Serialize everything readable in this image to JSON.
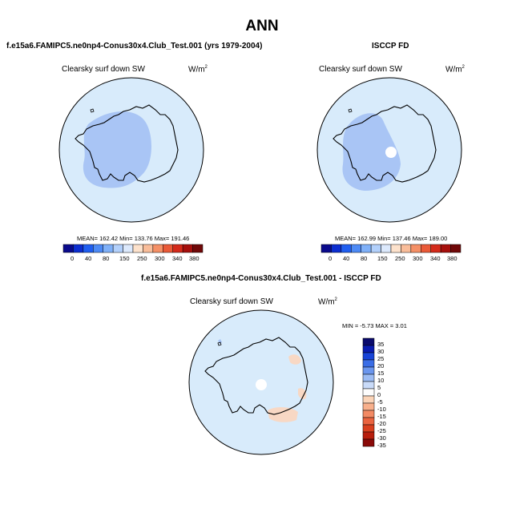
{
  "title": "ANN",
  "colors": {
    "base_field": "#d8ebfb",
    "low_band": "#a9c5f5",
    "land_outline": "#000000",
    "frame": "#000000",
    "diff_base": "#d8ebfb",
    "diff_positive": "#f8d8c4"
  },
  "panels": [
    {
      "case_title": "f.e15a6.FAMIPC5.ne0np4-Conus30x4.Club_Test.001 (yrs 1979-2004)",
      "variable": "Clearsky surf down SW",
      "units_base": "W/m",
      "units_exp": "2",
      "stats": "MEAN= 162.42  Min= 133.76  Max= 191.46"
    },
    {
      "case_title": "ISCCP FD",
      "variable": "Clearsky surf down SW",
      "units_base": "W/m",
      "units_exp": "2",
      "stats": "MEAN= 162.99  Min= 137.46  Max= 189.00"
    }
  ],
  "horizontal_colorbar": {
    "colors": [
      "#0a0a8c",
      "#0c2ed0",
      "#1f5ef0",
      "#4d8af5",
      "#7fb0f8",
      "#b2d0fb",
      "#dce9fc",
      "#fde2cc",
      "#f9bd9a",
      "#f59066",
      "#ea5a38",
      "#d42a1a",
      "#a60f0c",
      "#700808"
    ],
    "labels": [
      "0",
      "40",
      "80",
      "150",
      "250",
      "300",
      "340",
      "380"
    ]
  },
  "difference": {
    "case_title": "f.e15a6.FAMIPC5.ne0np4-Conus30x4.Club_Test.001 - ISCCP FD",
    "variable": "Clearsky surf down SW",
    "units_base": "W/m",
    "units_exp": "2",
    "stats": "MIN = -5.73 MAX =  3.01",
    "colorbar": {
      "colors": [
        "#0a0a6c",
        "#0a1cb0",
        "#1844d8",
        "#3a6de6",
        "#6b96ee",
        "#9cbcf4",
        "#c9dbf9",
        "#fdfdfd",
        "#fbd4b8",
        "#f8b08c",
        "#f38a64",
        "#ea6440",
        "#d8401f",
        "#b71e0d",
        "#8a0a08"
      ],
      "labels": [
        "35",
        "30",
        "25",
        "20",
        "15",
        "10",
        "5",
        "0",
        "-5",
        "-10",
        "-15",
        "-20",
        "-25",
        "-30",
        "-35"
      ]
    }
  }
}
